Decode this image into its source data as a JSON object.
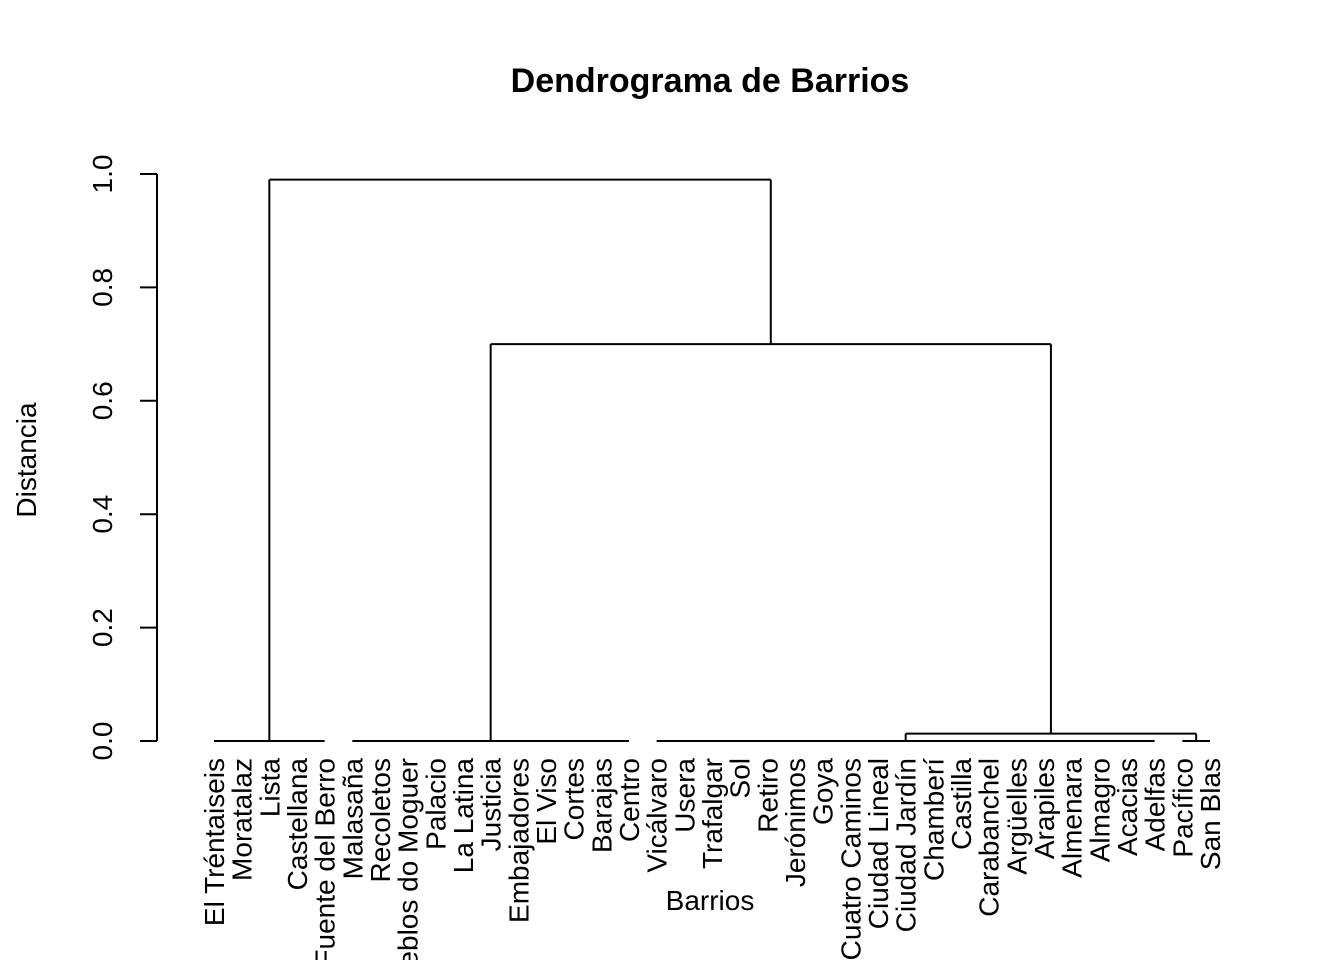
{
  "chart_data": {
    "type": "dendrogram",
    "title": "Dendrograma de Barrios",
    "xlabel": "Barrios",
    "ylabel": "Distancia",
    "ylim": [
      0,
      1.0
    ],
    "yticks": [
      0.0,
      0.2,
      0.4,
      0.6,
      0.8,
      1.0
    ],
    "ytick_labels": [
      "0.0",
      "0.2",
      "0.4",
      "0.6",
      "0.8",
      "1.0"
    ],
    "leaves": [
      "El Tréntaiseis",
      "Moratalaz",
      "Lista",
      "Castellana",
      "Fuente del Berro",
      "Malasaña",
      "Recoletos",
      "Pueblos do Moguer",
      "Palacio",
      "La Latina",
      "Justicia",
      "Embajadores",
      "El Viso",
      "Cortes",
      "Barajas",
      "Centro",
      "Vicálvaro",
      "Usera",
      "Trafalgar",
      "Sol",
      "Retiro",
      "Jerónimos",
      "Goya",
      "Cuatro Caminos",
      "Ciudad Lineal",
      "Ciudad Jardín",
      "Chamberí",
      "Castilla",
      "Carabanchel",
      "Argüelles",
      "Arapiles",
      "Almenara",
      "Almagro",
      "Acacias",
      "Adelfas",
      "Pacífico",
      "San Blas"
    ],
    "merges": [
      {
        "left": "Malasaña..Centro",
        "right": "Vicálvaro..San Blas",
        "height": 0.7
      },
      {
        "left": "El Tréntaiseis..Fuente del Berro",
        "right": "Malasaña..San Blas",
        "height": 0.99
      },
      {
        "left": "Vicálvaro..Adelfas",
        "right": "Pacífico..San Blas",
        "height": 0.013
      }
    ]
  }
}
